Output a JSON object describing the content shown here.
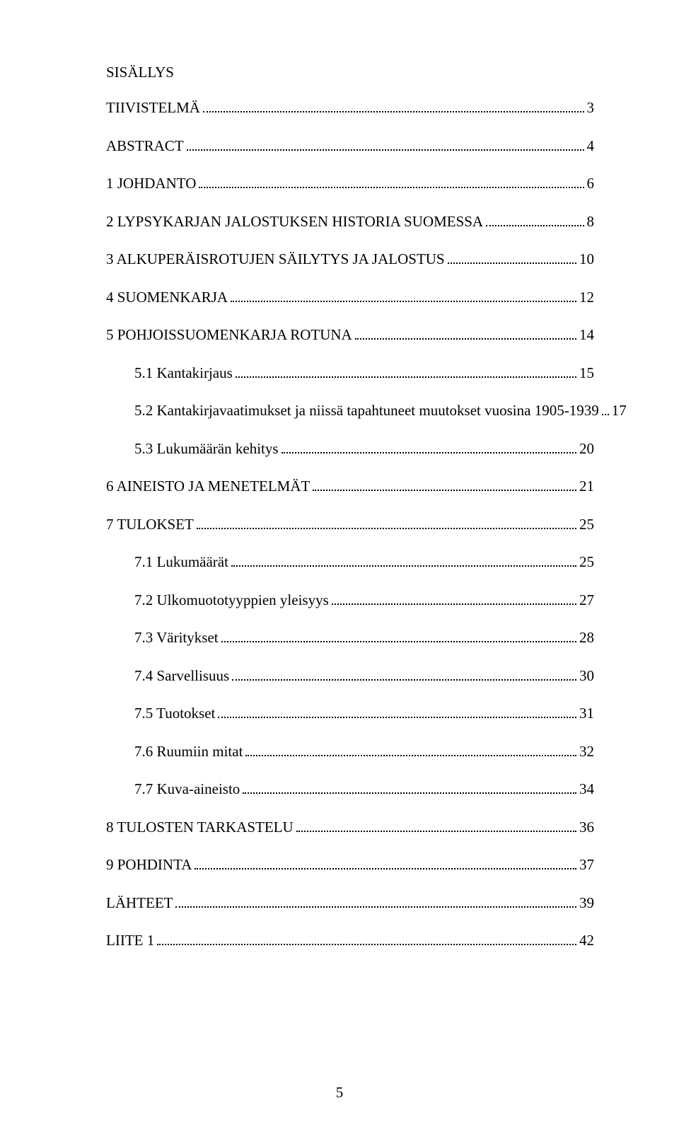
{
  "heading": "SISÄLLYS",
  "toc": [
    {
      "label": "TIIVISTELMÄ",
      "page": "3",
      "indent": 0
    },
    {
      "label": "ABSTRACT",
      "page": "4",
      "indent": 0
    },
    {
      "label": "1 JOHDANTO",
      "page": "6",
      "indent": 0
    },
    {
      "label": "2 LYPSYKARJAN JALOSTUKSEN HISTORIA SUOMESSA",
      "page": "8",
      "indent": 0
    },
    {
      "label": "3 ALKUPERÄISROTUJEN SÄILYTYS JA JALOSTUS",
      "page": "10",
      "indent": 0
    },
    {
      "label": "4 SUOMENKARJA",
      "page": "12",
      "indent": 0
    },
    {
      "label": "5 POHJOISSUOMENKARJA ROTUNA",
      "page": "14",
      "indent": 0
    },
    {
      "label": "5.1 Kantakirjaus",
      "page": "15",
      "indent": 1
    },
    {
      "label": "5.2 Kantakirjavaatimukset ja niissä tapahtuneet muutokset vuosina 1905-1939",
      "page": "17",
      "indent": 1
    },
    {
      "label": "5.3 Lukumäärän kehitys",
      "page": "20",
      "indent": 1
    },
    {
      "label": "6 AINEISTO JA MENETELMÄT",
      "page": "21",
      "indent": 0
    },
    {
      "label": "7 TULOKSET",
      "page": "25",
      "indent": 0
    },
    {
      "label": "7.1 Lukumäärät",
      "page": "25",
      "indent": 1
    },
    {
      "label": "7.2 Ulkomuototyyppien yleisyys",
      "page": "27",
      "indent": 1
    },
    {
      "label": "7.3 Väritykset",
      "page": "28",
      "indent": 1
    },
    {
      "label": "7.4 Sarvellisuus",
      "page": "30",
      "indent": 1
    },
    {
      "label": "7.5 Tuotokset",
      "page": "31",
      "indent": 1
    },
    {
      "label": "7.6  Ruumiin mitat",
      "page": "32",
      "indent": 1
    },
    {
      "label": "7.7 Kuva-aineisto",
      "page": "34",
      "indent": 1
    },
    {
      "label": "8 TULOSTEN TARKASTELU",
      "page": "36",
      "indent": 0
    },
    {
      "label": "9 POHDINTA",
      "page": "37",
      "indent": 0
    },
    {
      "label": "LÄHTEET",
      "page": "39",
      "indent": 0
    },
    {
      "label": "LIITE 1",
      "page": "42",
      "indent": 0
    }
  ],
  "page_number": "5",
  "colors": {
    "text": "#000000",
    "background": "#ffffff"
  },
  "typography": {
    "font_family": "Times New Roman",
    "body_fontsize_pt": 16,
    "line_height": 1.5
  }
}
